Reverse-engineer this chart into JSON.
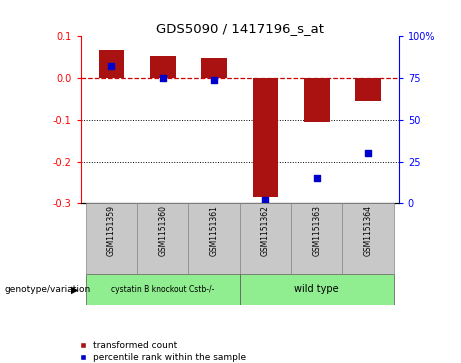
{
  "title": "GDS5090 / 1417196_s_at",
  "samples": [
    "GSM1151359",
    "GSM1151360",
    "GSM1151361",
    "GSM1151362",
    "GSM1151363",
    "GSM1151364"
  ],
  "transformed_counts": [
    0.068,
    0.053,
    0.048,
    -0.285,
    -0.105,
    -0.055
  ],
  "percentile_ranks": [
    82,
    75,
    74,
    2,
    15,
    30
  ],
  "ylim_left": [
    -0.3,
    0.1
  ],
  "ylim_right": [
    0,
    100
  ],
  "yticks_left": [
    -0.3,
    -0.2,
    -0.1,
    0.0,
    0.1
  ],
  "yticks_right": [
    0,
    25,
    50,
    75,
    100
  ],
  "bar_color": "#aa1111",
  "dot_color": "#0000cc",
  "hline_color": "#cc0000",
  "dotted_lines": [
    -0.1,
    -0.2
  ],
  "genotype_labels": [
    "cystatin B knockout Cstb-/-",
    "wild type"
  ],
  "group1_color": "#c8c8c8",
  "group2_color": "#90ee90",
  "legend_red_label": "transformed count",
  "legend_blue_label": "percentile rank within the sample",
  "genotype_row_label": "genotype/variation",
  "background_color": "#ffffff",
  "bar_width": 0.5,
  "sample_label_bg": "#c8c8c8"
}
